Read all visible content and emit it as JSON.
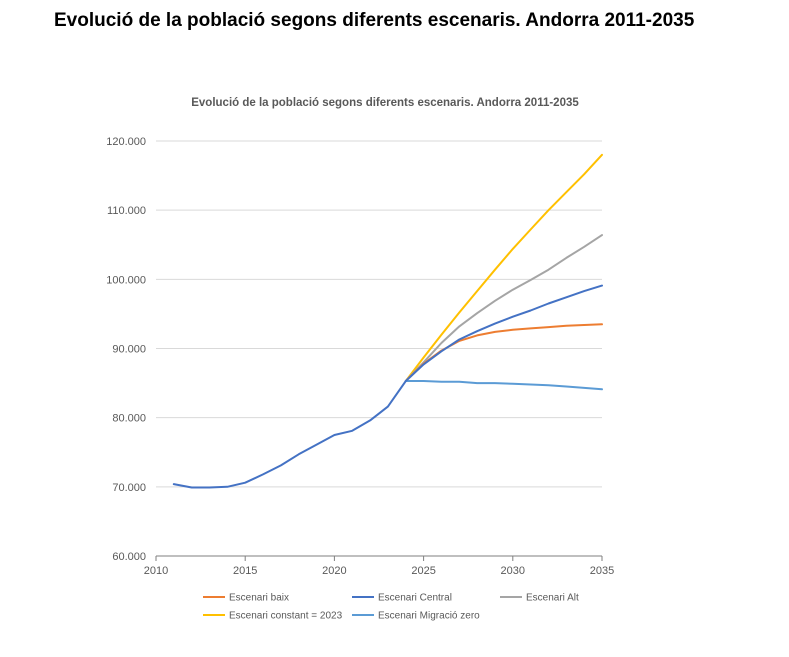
{
  "page": {
    "title": "Evolució de la població segons diferents escenaris. Andorra 2011-2035"
  },
  "chart_data": {
    "type": "line",
    "title": "Evolució de la població segons diferents escenaris. Andorra 2011-2035",
    "xlabel": "",
    "ylabel": "",
    "xlim": [
      2010,
      2035
    ],
    "ylim": [
      60000,
      120000
    ],
    "x_ticks": [
      2010,
      2015,
      2020,
      2025,
      2030,
      2035
    ],
    "y_ticks": [
      60000,
      70000,
      80000,
      90000,
      100000,
      110000,
      120000
    ],
    "x_tick_labels": [
      "2010",
      "2015",
      "2020",
      "2025",
      "2030",
      "2035"
    ],
    "y_tick_labels": [
      "60.000",
      "70.000",
      "80.000",
      "90.000",
      "100.000",
      "110.000",
      "120.000"
    ],
    "grid": "horizontal",
    "legend_position": "bottom",
    "series": [
      {
        "name": "Escenari baix",
        "color": "#ED7D31",
        "x": [
          2024,
          2025,
          2026,
          2027,
          2028,
          2029,
          2030,
          2031,
          2032,
          2033,
          2034,
          2035
        ],
        "y": [
          85300,
          87800,
          89700,
          91100,
          91900,
          92400,
          92700,
          92900,
          93100,
          93300,
          93400,
          93500
        ]
      },
      {
        "name": "Escenari Central",
        "color": "#4472C4",
        "x": [
          2011,
          2012,
          2013,
          2014,
          2015,
          2016,
          2017,
          2018,
          2019,
          2020,
          2021,
          2022,
          2023,
          2024,
          2025,
          2026,
          2027,
          2028,
          2029,
          2030,
          2031,
          2032,
          2033,
          2034,
          2035
        ],
        "y": [
          70400,
          69900,
          69900,
          70000,
          70600,
          71800,
          73100,
          74700,
          76100,
          77500,
          78100,
          79600,
          81600,
          85300,
          87700,
          89600,
          91300,
          92500,
          93600,
          94600,
          95500,
          96500,
          97400,
          98300,
          99100
        ]
      },
      {
        "name": "Escenari Alt",
        "color": "#A5A5A5",
        "x": [
          2024,
          2025,
          2026,
          2027,
          2028,
          2029,
          2030,
          2031,
          2032,
          2033,
          2034,
          2035
        ],
        "y": [
          85300,
          88000,
          90800,
          93200,
          95100,
          96900,
          98500,
          99900,
          101400,
          103100,
          104700,
          106400
        ]
      },
      {
        "name": "Escenari constant = 2023",
        "color": "#FFC000",
        "x": [
          2024,
          2025,
          2026,
          2027,
          2028,
          2029,
          2030,
          2031,
          2032,
          2033,
          2034,
          2035
        ],
        "y": [
          85300,
          88700,
          92000,
          95200,
          98300,
          101400,
          104400,
          107200,
          110000,
          112600,
          115200,
          118000
        ]
      },
      {
        "name": "Escenari Migració zero",
        "color": "#5B9BD5",
        "x": [
          2024,
          2025,
          2026,
          2027,
          2028,
          2029,
          2030,
          2031,
          2032,
          2033,
          2034,
          2035
        ],
        "y": [
          85300,
          85300,
          85200,
          85200,
          85000,
          85000,
          84900,
          84800,
          84700,
          84500,
          84300,
          84100
        ]
      }
    ]
  }
}
